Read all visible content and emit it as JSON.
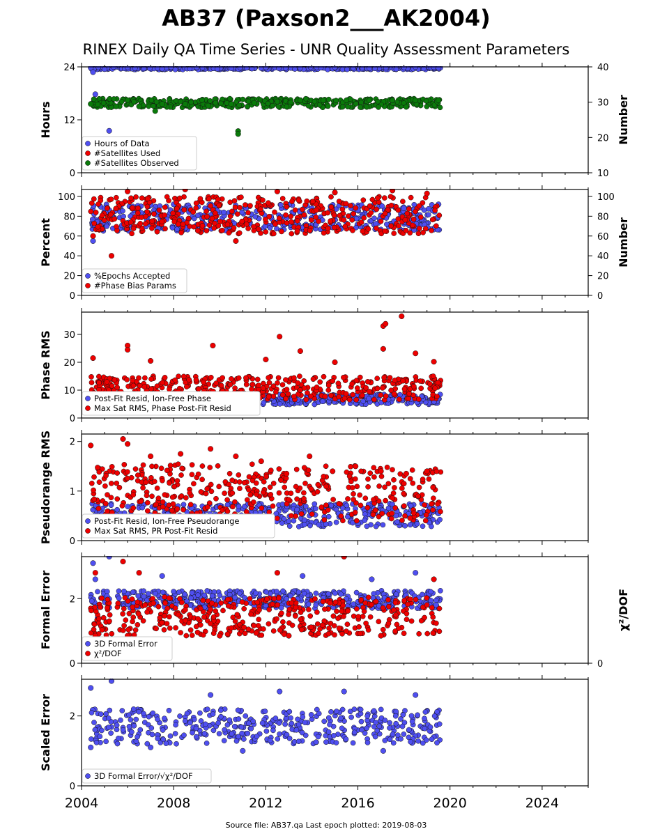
{
  "title": "AB37 (Paxson2___AK2004)",
  "subtitle": "RINEX Daily QA Time Series - UNR Quality Assessment Parameters",
  "footer": "Source file: AB37.qa Last epoch plotted: 2019-08-03",
  "colors": {
    "blue": "#4f4ff0",
    "red": "#ee0000",
    "green": "#0a7a0a"
  },
  "chart_data": [
    {
      "type": "scatter",
      "xlim": [
        2004.0,
        2026.0
      ],
      "x_ticks": [
        "2004",
        "2008",
        "2012",
        "2016",
        "2020",
        "2024"
      ],
      "ylabel": "Hours",
      "ylim": [
        0,
        24
      ],
      "y_ticks": [
        "0",
        "12",
        "24"
      ],
      "y2label": "Number",
      "y2lim": [
        10,
        40
      ],
      "y2_ticks": [
        "10",
        "20",
        "30",
        "40"
      ],
      "legend_location": "lower left",
      "series": [
        {
          "name": "Hours of Data",
          "color": "blue",
          "axis": "left",
          "points": [
            [
              2004.4,
              23.8
            ],
            [
              2005.0,
              23.5
            ],
            [
              2006.0,
              23.9
            ],
            [
              2007.5,
              23.6
            ],
            [
              2009.0,
              23.9
            ],
            [
              2010.5,
              23.7
            ],
            [
              2012.0,
              23.9
            ],
            [
              2013.5,
              23.8
            ],
            [
              2015.0,
              23.9
            ],
            [
              2016.5,
              23.7
            ],
            [
              2018.0,
              23.9
            ],
            [
              2019.5,
              23.8
            ],
            [
              2004.6,
              17.8
            ],
            [
              2005.2,
              9.5
            ],
            [
              2004.5,
              22.8
            ]
          ],
          "band": {
            "x": [
              2004.4,
              2019.6
            ],
            "y": [
              23.4,
              24.0
            ]
          }
        },
        {
          "name": "#Satellites Used",
          "color": "red",
          "axis": "right",
          "points": []
        },
        {
          "name": "#Satellites Observed",
          "color": "green",
          "axis": "right",
          "points": [
            [
              2004.4,
              29.5
            ],
            [
              2005.5,
              28.8
            ],
            [
              2006.5,
              28.8
            ],
            [
              2007.5,
              29.5
            ],
            [
              2008.5,
              29.5
            ],
            [
              2009.5,
              29.0
            ],
            [
              2010.5,
              29.5
            ],
            [
              2011.5,
              29.8
            ],
            [
              2012.5,
              30.2
            ],
            [
              2013.5,
              30.5
            ],
            [
              2014.5,
              30.5
            ],
            [
              2015.5,
              30.5
            ],
            [
              2016.5,
              30.5
            ],
            [
              2017.5,
              30.5
            ],
            [
              2018.5,
              30.5
            ],
            [
              2019.5,
              30.5
            ],
            [
              2010.8,
              21.8
            ],
            [
              2010.8,
              21.0
            ],
            [
              2007.2,
              27.5
            ]
          ],
          "band": {
            "x": [
              2004.4,
              2019.6
            ],
            "y": [
              28.5,
              31.0
            ]
          }
        }
      ]
    },
    {
      "type": "scatter",
      "xlim": [
        2004.0,
        2026.0
      ],
      "ylabel": "Percent",
      "ylim": [
        0,
        107
      ],
      "y_ticks": [
        "0",
        "20",
        "40",
        "60",
        "80",
        "100"
      ],
      "y2label": "Number",
      "y2lim": [
        0,
        107
      ],
      "y2_ticks": [
        "0",
        "20",
        "40",
        "60",
        "80",
        "100"
      ],
      "legend_location": "lower left",
      "series": [
        {
          "name": "%Epochs Accepted",
          "color": "blue",
          "axis": "left",
          "points": [
            [
              2004.5,
              55
            ],
            [
              2005.0,
              88
            ],
            [
              2008.0,
              92
            ],
            [
              2010.0,
              91
            ],
            [
              2012.0,
              90
            ],
            [
              2014.0,
              88
            ],
            [
              2016.0,
              86
            ],
            [
              2018.0,
              88
            ],
            [
              2019.5,
              92
            ]
          ],
          "band": {
            "x": [
              2004.4,
              2019.6
            ],
            "y": [
              65,
              92
            ]
          }
        },
        {
          "name": "#Phase Bias Params",
          "color": "red",
          "axis": "right",
          "points": [
            [
              2005.3,
              40
            ],
            [
              2004.5,
              60
            ],
            [
              2010.7,
              55
            ],
            [
              2006.0,
              105
            ],
            [
              2008.5,
              107
            ],
            [
              2012.5,
              105
            ],
            [
              2015.0,
              104
            ],
            [
              2017.5,
              106
            ],
            [
              2019.0,
              103
            ]
          ],
          "band": {
            "x": [
              2004.4,
              2019.6
            ],
            "y": [
              62,
              100
            ]
          }
        }
      ]
    },
    {
      "type": "scatter",
      "xlim": [
        2004.0,
        2026.0
      ],
      "ylabel": "Phase RMS",
      "ylim": [
        0,
        38
      ],
      "y_ticks": [
        "0",
        "10",
        "20",
        "30"
      ],
      "legend_location": "lower left",
      "series": [
        {
          "name": "Post-Fit Resid, Ion-Free Phase",
          "color": "blue",
          "axis": "left",
          "points": [
            [
              2005.0,
              6.5
            ],
            [
              2008.0,
              6.2
            ],
            [
              2012.0,
              7.0
            ],
            [
              2016.0,
              6.5
            ],
            [
              2019.5,
              7.0
            ]
          ],
          "band": {
            "x": [
              2004.4,
              2019.6
            ],
            "y": [
              4.8,
              8.5
            ]
          }
        },
        {
          "name": "Max Sat RMS, Phase Post-Fit Resid",
          "color": "red",
          "axis": "left",
          "points": [
            [
              2017.9,
              36.5
            ],
            [
              2017.1,
              33.0
            ],
            [
              2017.2,
              33.8
            ],
            [
              2012.6,
              29.2
            ],
            [
              2009.7,
              26.0
            ],
            [
              2006.0,
              26.0
            ],
            [
              2006.0,
              24.5
            ],
            [
              2017.1,
              24.8
            ],
            [
              2018.5,
              23.2
            ],
            [
              2004.5,
              21.5
            ],
            [
              2007.0,
              20.5
            ],
            [
              2012.0,
              21.0
            ],
            [
              2013.5,
              24.0
            ],
            [
              2015.0,
              20.0
            ],
            [
              2019.3,
              20.2
            ]
          ],
          "band": {
            "x": [
              2004.4,
              2019.6
            ],
            "y": [
              6.5,
              15.0
            ]
          }
        }
      ]
    },
    {
      "type": "scatter",
      "xlim": [
        2004.0,
        2026.0
      ],
      "ylabel": "Pseudorange RMS",
      "ylim": [
        0,
        2.15
      ],
      "y_ticks": [
        "0",
        "1",
        "2"
      ],
      "legend_location": "lower left",
      "series": [
        {
          "name": "Post-Fit Resid, Ion-Free Pseudorange",
          "color": "blue",
          "axis": "left",
          "points": [
            [
              2005.0,
              0.45
            ],
            [
              2008.0,
              0.4
            ],
            [
              2012.0,
              0.4
            ],
            [
              2016.0,
              0.35
            ],
            [
              2019.5,
              0.55
            ]
          ],
          "band": {
            "x": [
              2004.4,
              2019.6
            ],
            "y": [
              0.28,
              0.75
            ]
          }
        },
        {
          "name": "Max Sat RMS, PR Post-Fit Resid",
          "color": "red",
          "axis": "left",
          "points": [
            [
              2005.8,
              2.05
            ],
            [
              2004.4,
              1.92
            ],
            [
              2006.0,
              1.95
            ],
            [
              2007.0,
              1.7
            ],
            [
              2008.3,
              1.75
            ],
            [
              2009.6,
              1.85
            ],
            [
              2010.7,
              1.7
            ],
            [
              2011.8,
              1.6
            ],
            [
              2012.9,
              1.35
            ],
            [
              2013.9,
              1.7
            ],
            [
              2014.9,
              1.4
            ],
            [
              2015.9,
              1.5
            ],
            [
              2017.0,
              1.4
            ],
            [
              2018.1,
              1.35
            ],
            [
              2019.0,
              1.4
            ]
          ],
          "band": {
            "x": [
              2004.4,
              2019.6
            ],
            "y": [
              0.4,
              1.55
            ]
          }
        }
      ]
    },
    {
      "type": "scatter",
      "xlim": [
        2004.0,
        2026.0
      ],
      "ylabel": "Formal Error",
      "ylim": [
        0,
        3.3
      ],
      "y_ticks": [
        "0",
        "2"
      ],
      "y2label": "χ²/DOF",
      "y2_ticks": [
        "0"
      ],
      "legend_location": "lower left",
      "series": [
        {
          "name": "3D Formal Error",
          "color": "blue",
          "axis": "left",
          "points": [
            [
              2004.5,
              3.1
            ],
            [
              2005.2,
              3.3
            ],
            [
              2004.6,
              2.6
            ],
            [
              2015.4,
              3.3
            ],
            [
              2007.5,
              2.7
            ],
            [
              2013.6,
              2.7
            ],
            [
              2016.6,
              2.6
            ],
            [
              2018.5,
              2.8
            ],
            [
              2004.7,
              1.4
            ],
            [
              2019.4,
              1.8
            ]
          ],
          "band": {
            "x": [
              2004.4,
              2019.6
            ],
            "y": [
              1.7,
              2.25
            ]
          }
        },
        {
          "name": "χ²/DOF",
          "color": "red",
          "axis": "right",
          "points": [
            [
              2005.8,
              3.15
            ],
            [
              2015.4,
              3.3
            ],
            [
              2006.5,
              2.8
            ],
            [
              2004.6,
              2.8
            ],
            [
              2012.5,
              2.8
            ],
            [
              2019.3,
              2.6
            ],
            [
              2004.6,
              0.85
            ],
            [
              2006.0,
              0.85
            ],
            [
              2010.0,
              0.85
            ],
            [
              2013.0,
              0.85
            ],
            [
              2017.0,
              0.85
            ]
          ],
          "band": {
            "x": [
              2004.4,
              2019.6
            ],
            "y": [
              0.85,
              2.05
            ]
          }
        }
      ]
    },
    {
      "type": "scatter",
      "xlim": [
        2004.0,
        2026.0
      ],
      "ylabel": "Scaled Error",
      "ylim": [
        0,
        3.05
      ],
      "y_ticks": [
        "0",
        "2"
      ],
      "legend_location": "lower left",
      "series": [
        {
          "name": "3D Formal Error/√χ²/DOF",
          "color": "blue",
          "axis": "left",
          "points": [
            [
              2005.3,
              3.0
            ],
            [
              2004.4,
              2.8
            ],
            [
              2012.6,
              2.7
            ],
            [
              2015.4,
              2.7
            ],
            [
              2009.6,
              2.6
            ],
            [
              2018.5,
              2.6
            ],
            [
              2004.4,
              1.1
            ],
            [
              2011.0,
              1.0
            ],
            [
              2017.1,
              1.0
            ],
            [
              2007.0,
              1.1
            ]
          ],
          "band": {
            "x": [
              2004.4,
              2019.6
            ],
            "y": [
              1.2,
              2.2
            ]
          }
        }
      ]
    }
  ]
}
